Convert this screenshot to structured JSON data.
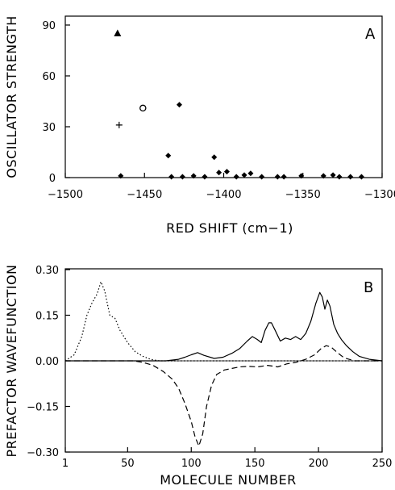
{
  "chart_data": [
    {
      "panel": "A",
      "type": "scatter",
      "xlabel": "RED SHIFT (cm−1)",
      "ylabel": "OSCILLATOR STRENGTH",
      "xlim": [
        -1500,
        -1300
      ],
      "ylim": [
        0,
        90
      ],
      "x_ticks": [
        "-1500",
        "-1450",
        "-1400",
        "-1350",
        "-1300"
      ],
      "y_ticks": [
        "0",
        "30",
        "60",
        "90"
      ],
      "grid": false,
      "series": [
        {
          "marker": "triangle",
          "points": [
            [
              -1467,
              85
            ]
          ]
        },
        {
          "marker": "open-circle",
          "points": [
            [
              -1451,
              41
            ]
          ]
        },
        {
          "marker": "plus",
          "points": [
            [
              -1466,
              31
            ]
          ]
        },
        {
          "marker": "diamond",
          "points": [
            [
              -1428,
              43
            ],
            [
              -1435,
              13
            ],
            [
              -1406,
              12
            ],
            [
              -1465,
              1
            ],
            [
              -1433,
              0.5
            ],
            [
              -1426,
              0.5
            ],
            [
              -1419,
              1
            ],
            [
              -1412,
              0.5
            ],
            [
              -1403,
              3
            ],
            [
              -1398,
              3.5
            ],
            [
              -1392,
              0.5
            ],
            [
              -1387,
              1.5
            ],
            [
              -1383,
              2.5
            ],
            [
              -1376,
              0.5
            ],
            [
              -1366,
              0.5
            ],
            [
              -1362,
              0.5
            ],
            [
              -1351,
              1
            ],
            [
              -1337,
              1
            ],
            [
              -1331,
              1.5
            ],
            [
              -1327,
              0.5
            ],
            [
              -1320,
              0.5
            ],
            [
              -1313,
              0.5
            ]
          ]
        }
      ]
    },
    {
      "panel": "B",
      "type": "line",
      "xlabel": "MOLECULE NUMBER",
      "ylabel": "PREFACTOR WAVEFUNCTION",
      "xlim": [
        1,
        250
      ],
      "ylim": [
        -0.3,
        0.3
      ],
      "x_ticks": [
        "1",
        "50",
        "100",
        "150",
        "200",
        "250"
      ],
      "y_ticks": [
        "0.30",
        "0.15",
        "0.00",
        "-0.15",
        "-0.30"
      ],
      "grid": false,
      "series": [
        {
          "style": "dotted",
          "x": [
            1,
            8,
            14,
            18,
            22,
            26,
            29,
            32,
            36,
            40,
            44,
            50,
            56,
            62,
            68,
            75,
            85,
            250
          ],
          "y": [
            0.0,
            0.02,
            0.08,
            0.15,
            0.19,
            0.22,
            0.26,
            0.23,
            0.15,
            0.14,
            0.1,
            0.06,
            0.03,
            0.015,
            0.005,
            0.0,
            0.0,
            0.0
          ]
        },
        {
          "style": "dashed",
          "x": [
            1,
            55,
            62,
            70,
            78,
            85,
            90,
            95,
            100,
            103,
            106,
            109,
            112,
            116,
            120,
            126,
            132,
            138,
            145,
            152,
            160,
            168,
            175,
            182,
            190,
            197,
            202,
            206,
            210,
            214,
            220,
            228,
            240,
            250
          ],
          "y": [
            0.0,
            0.0,
            -0.005,
            -0.015,
            -0.035,
            -0.06,
            -0.09,
            -0.14,
            -0.2,
            -0.25,
            -0.28,
            -0.24,
            -0.15,
            -0.08,
            -0.045,
            -0.03,
            -0.025,
            -0.02,
            -0.018,
            -0.02,
            -0.015,
            -0.02,
            -0.01,
            -0.005,
            0.005,
            0.02,
            0.04,
            0.05,
            0.045,
            0.03,
            0.01,
            0.0,
            0.0,
            0.0
          ]
        },
        {
          "style": "solid",
          "x": [
            1,
            80,
            90,
            95,
            100,
            105,
            110,
            118,
            125,
            132,
            138,
            144,
            148,
            152,
            155,
            158,
            161,
            163,
            166,
            170,
            174,
            178,
            182,
            186,
            190,
            194,
            198,
            201,
            203,
            205,
            207,
            209,
            212,
            215,
            218,
            222,
            227,
            232,
            240,
            250
          ],
          "y": [
            0.0,
            0.0,
            0.005,
            0.012,
            0.02,
            0.027,
            0.018,
            0.008,
            0.012,
            0.025,
            0.04,
            0.065,
            0.08,
            0.07,
            0.06,
            0.1,
            0.125,
            0.125,
            0.1,
            0.065,
            0.075,
            0.07,
            0.08,
            0.07,
            0.09,
            0.13,
            0.19,
            0.225,
            0.21,
            0.17,
            0.2,
            0.18,
            0.12,
            0.09,
            0.07,
            0.05,
            0.03,
            0.015,
            0.005,
            0.0
          ]
        }
      ]
    }
  ]
}
